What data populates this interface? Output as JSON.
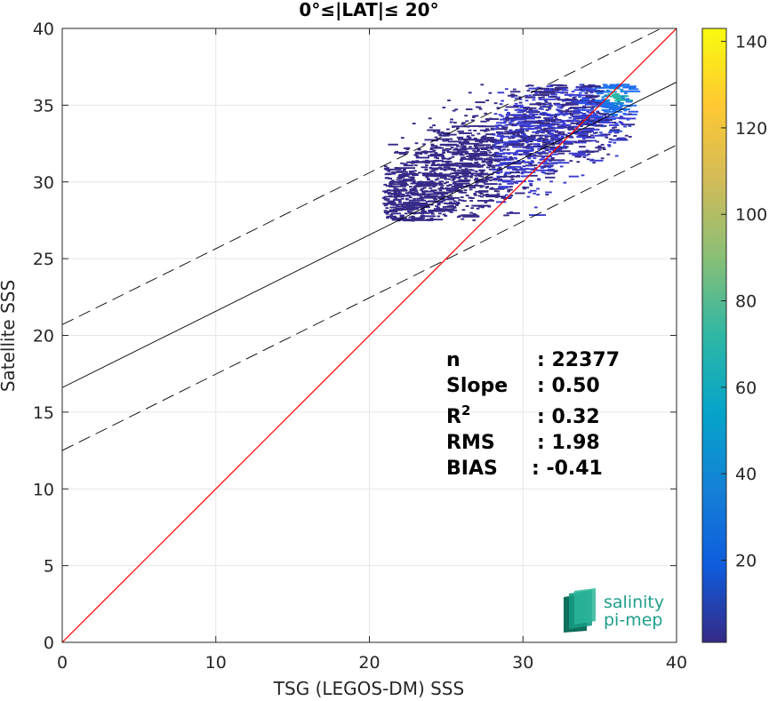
{
  "chart_data": {
    "type": "heatmap",
    "title": "0°≤|LAT|≤ 20°",
    "xlabel": "TSG (LEGOS-DM) SSS",
    "ylabel": "Satellite SSS",
    "xlim": [
      0,
      40
    ],
    "ylim": [
      0,
      40
    ],
    "xticks": [
      0,
      10,
      20,
      30,
      40
    ],
    "yticks": [
      0,
      5,
      10,
      15,
      20,
      25,
      30,
      35,
      40
    ],
    "grid": true,
    "colorbar": {
      "range": [
        1,
        143
      ],
      "ticks": [
        20,
        40,
        60,
        80,
        100,
        120,
        140
      ],
      "colormap": "parula"
    },
    "lines": [
      {
        "name": "identity",
        "style": "solid",
        "color": "#ff0000",
        "x": [
          0,
          40
        ],
        "y": [
          0,
          40
        ]
      },
      {
        "name": "fit",
        "style": "solid",
        "color": "#000000",
        "x": [
          0,
          40
        ],
        "y": [
          16.6,
          36.5
        ]
      },
      {
        "name": "fit_upper",
        "style": "dashed",
        "color": "#000000",
        "x": [
          0,
          40
        ],
        "y": [
          20.7,
          40.5
        ]
      },
      {
        "name": "fit_lower",
        "style": "dashed",
        "color": "#000000",
        "x": [
          0,
          40
        ],
        "y": [
          12.5,
          32.4
        ]
      }
    ],
    "density_region": {
      "x_range": [
        20.8,
        36.9
      ],
      "y_range": [
        27.4,
        36.3
      ],
      "peak": [
        35.8,
        35.5
      ],
      "peak_count": 143
    },
    "stats": [
      {
        "label": "n",
        "value": ": 22377"
      },
      {
        "label": "Slope",
        "value": ": 0.50"
      },
      {
        "label": "R",
        "sup": "2",
        "value": ": 0.32"
      },
      {
        "label": "RMS",
        "value": ": 1.98"
      },
      {
        "label": "BIAS",
        "value": ": -0.41"
      }
    ]
  },
  "logo": {
    "line1": "salinity",
    "line2": "pi-mep"
  }
}
